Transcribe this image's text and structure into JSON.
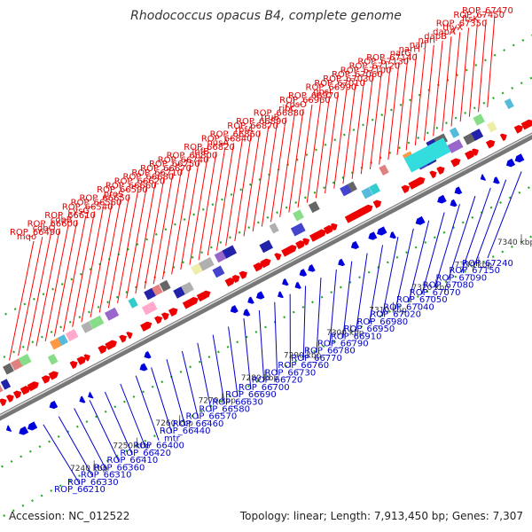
{
  "title": "Rhodococcus opacus B4, complete genome",
  "accession": "Accession: NC_012522",
  "topology": "Topology: linear; Length: 7,913,450 bp; Genes: 7,307",
  "colors": {
    "top_label": "#dd0000",
    "bottom_label": "#0000cc",
    "backbone": "#888888",
    "dots": "#22aa22"
  },
  "ticks": [
    "7240 kbp",
    "7250 kbp",
    "7260 kbp",
    "7270 kbp",
    "7280 kbp",
    "7290 kbp",
    "7300 kbp",
    "7310 kbp",
    "7320 kbp",
    "7330 kbp",
    "7340 kbp"
  ],
  "top_labels": [
    "mqo",
    "ROP_66490",
    "cobO",
    "ROP_66600",
    "cobB",
    "ROP_66610",
    "cysG",
    "ROP_66540",
    "ROP_66560",
    "ROP_66650",
    "proS",
    "ROP_66590",
    "ROP_66660",
    "ROP_66620",
    "ROP_66680",
    "ROP_66710",
    "ROP_66670",
    "ROP_66750",
    "ROP_66740",
    "ROP_66800",
    "infB",
    "ROP_66820",
    "nusA",
    "ROP_66840",
    "ROP_66860",
    "rbfA",
    "ROP_66870",
    "ROP_66890",
    "truB",
    "ROP_66880",
    "ribC",
    "rpsO",
    "ROP_66960",
    "ROP_66970",
    "gpsI",
    "ROP_66990",
    "ROP_67010",
    "ROP_67030",
    "ROP_67060",
    "ROP_67100",
    "ROP_67120",
    "ROP_67130",
    "ROP_67140",
    "narG",
    "narH",
    "narJ",
    "narI",
    "dapB",
    "dapA",
    "thyX",
    "ROP_67350",
    "ftsK",
    "ROP_67450",
    "ROP_67470"
  ],
  "bottom_labels": [
    "ROP_66210",
    "ROP_66330",
    "ROP_66310",
    "ROP_66360",
    "ROP_66410",
    "ROP_66420",
    "ROP_66400",
    "mtr",
    "ROP_66440",
    "ROP_66460",
    "ROP_66570",
    "ROP_66580",
    "ROP_66630",
    "ROP_66690",
    "ROP_66700",
    "ROP_66720",
    "ROP_66730",
    "ROP_66760",
    "ROP_66770",
    "ROP_66780",
    "ROP_66790",
    "ROP_66910",
    "ROP_66950",
    "ROP_66980",
    "ROP_67020",
    "ROP_67040",
    "ROP_67050",
    "ROP_67070",
    "ROP_67080",
    "ROP_67090",
    "ROP_67150",
    "ROP_67240"
  ]
}
